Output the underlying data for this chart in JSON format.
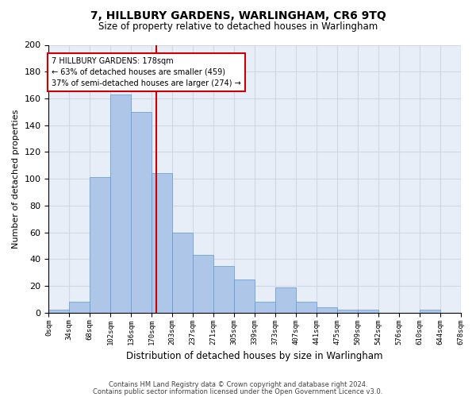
{
  "title_line1": "7, HILLBURY GARDENS, WARLINGHAM, CR6 9TQ",
  "title_line2": "Size of property relative to detached houses in Warlingham",
  "xlabel": "Distribution of detached houses by size in Warlingham",
  "ylabel": "Number of detached properties",
  "bar_values": [
    2,
    8,
    101,
    163,
    150,
    104,
    60,
    43,
    35,
    25,
    8,
    19,
    8,
    4,
    2,
    2,
    0,
    0,
    2
  ],
  "categories": [
    "0sqm",
    "34sqm",
    "68sqm",
    "102sqm",
    "136sqm",
    "170sqm",
    "203sqm",
    "237sqm",
    "271sqm",
    "305sqm",
    "339sqm",
    "373sqm",
    "407sqm",
    "441sqm",
    "475sqm",
    "509sqm",
    "542sqm",
    "576sqm",
    "610sqm",
    "644sqm",
    "678sqm"
  ],
  "bar_color": "#aec6e8",
  "bar_edge_color": "#5b9bd5",
  "grid_color": "#d0d8e8",
  "background_color": "#e8eef7",
  "vline_color": "#cc0000",
  "vline_position": 5.22,
  "annotation_text": "7 HILLBURY GARDENS: 178sqm\n← 63% of detached houses are smaller (459)\n37% of semi-detached houses are larger (274) →",
  "annotation_box_color": "#ffffff",
  "annotation_box_edge": "#cc0000",
  "ylim": [
    0,
    200
  ],
  "yticks": [
    0,
    20,
    40,
    60,
    80,
    100,
    120,
    140,
    160,
    180,
    200
  ],
  "footnote1": "Contains HM Land Registry data © Crown copyright and database right 2024.",
  "footnote2": "Contains public sector information licensed under the Open Government Licence v3.0."
}
